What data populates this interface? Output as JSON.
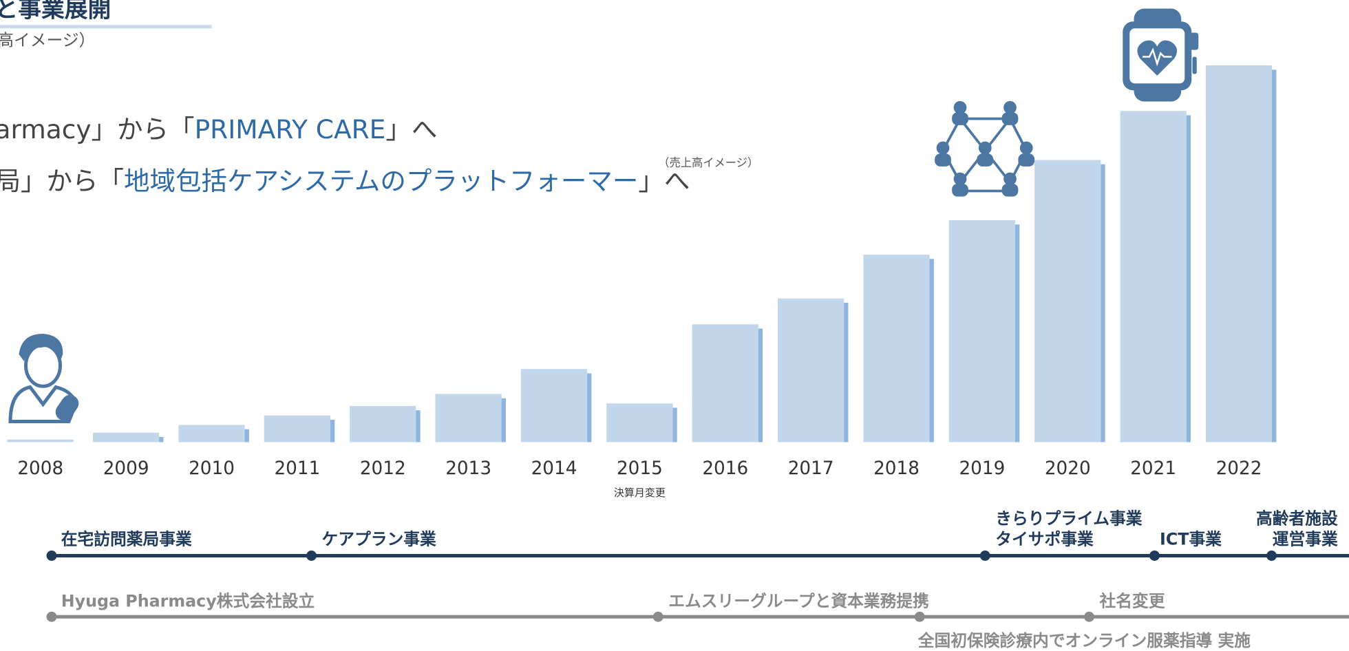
{
  "header": {
    "title": "と事業展開",
    "subtitle": "高イメージ）"
  },
  "slogans": [
    {
      "parts": [
        "armacy」から「",
        "PRIMARY CARE",
        "」へ"
      ]
    },
    {
      "parts": [
        "局」から「",
        "地域包括ケアシステムのプラットフォーマー",
        "」へ"
      ]
    }
  ],
  "chart_data": {
    "type": "bar",
    "annotation": "（売上高イメージ）",
    "categories": [
      "2008",
      "2009",
      "2010",
      "2011",
      "2012",
      "2013",
      "2014",
      "2015",
      "2016",
      "2017",
      "2018",
      "2019",
      "2020",
      "2021",
      "2022"
    ],
    "values": [
      3,
      11,
      20,
      31,
      42,
      56,
      85,
      45,
      137,
      167,
      218,
      258,
      328,
      385,
      438
    ],
    "color": "#c2d7eb",
    "shadow_color": "#8fb4dd",
    "ylim": [
      0,
      450
    ],
    "note": "決算月変更"
  },
  "timeline": {
    "business": [
      {
        "lines": [
          "在宅訪問薬局事業"
        ]
      },
      {
        "lines": [
          "ケアプラン事業"
        ]
      },
      {
        "lines": [
          "きらりプライム事業",
          "タイサポ事業"
        ]
      },
      {
        "lines": [
          "ICT事業"
        ]
      },
      {
        "lines": [
          "高齢者施設",
          "運営事業"
        ]
      }
    ],
    "corporate": [
      {
        "lines": [
          "Hyuga Pharmacy株式会社設立"
        ]
      },
      {
        "lines": [
          "エムスリーグループと資本業務提携"
        ]
      },
      {
        "lines": [
          "全国初保険診療内でオンライン服薬指導 実施"
        ]
      },
      {
        "lines": [
          "社名変更"
        ]
      }
    ]
  }
}
